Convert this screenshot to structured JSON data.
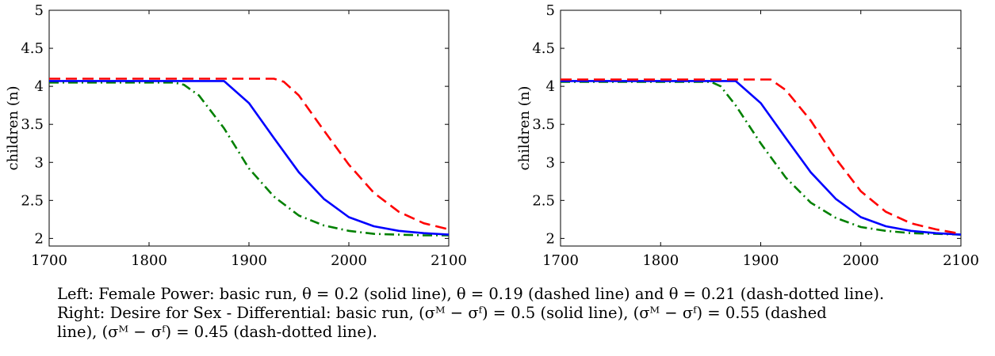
{
  "chart_data": [
    {
      "type": "line",
      "ylabel": "children (n)",
      "xlabel": "",
      "title": "",
      "xlim": [
        1700,
        2100
      ],
      "ylim": [
        1.9,
        5
      ],
      "xticks": [
        1700,
        1800,
        1900,
        2000,
        2100
      ],
      "yticks": [
        2,
        2.5,
        3,
        3.5,
        4,
        4.5,
        5
      ],
      "ytick_labels": [
        "2",
        "2.5",
        "3",
        "3.5",
        "4",
        "4.5",
        "5"
      ],
      "grid": false,
      "series": [
        {
          "style": "dash-dotted",
          "color": "#008000",
          "x": [
            1700,
            1825,
            1835,
            1850,
            1875,
            1900,
            1925,
            1950,
            1975,
            2000,
            2025,
            2050,
            2075,
            2100
          ],
          "values": [
            4.05,
            4.05,
            4.02,
            3.88,
            3.45,
            2.92,
            2.55,
            2.3,
            2.17,
            2.1,
            2.06,
            2.05,
            2.04,
            2.04
          ]
        },
        {
          "style": "solid",
          "color": "#0000ff",
          "x": [
            1700,
            1875,
            1900,
            1925,
            1950,
            1975,
            2000,
            2025,
            2050,
            2075,
            2100
          ],
          "values": [
            4.07,
            4.07,
            3.78,
            3.32,
            2.87,
            2.52,
            2.28,
            2.16,
            2.1,
            2.07,
            2.05
          ]
        },
        {
          "style": "dashed",
          "color": "#ff0000",
          "x": [
            1700,
            1925,
            1935,
            1950,
            1975,
            2000,
            2025,
            2050,
            2075,
            2100
          ],
          "values": [
            4.1,
            4.1,
            4.06,
            3.88,
            3.42,
            2.97,
            2.6,
            2.35,
            2.2,
            2.12
          ]
        }
      ]
    },
    {
      "type": "line",
      "ylabel": "children (n)",
      "xlabel": "",
      "title": "",
      "xlim": [
        1700,
        2100
      ],
      "ylim": [
        1.9,
        5
      ],
      "xticks": [
        1700,
        1800,
        1900,
        2000,
        2100
      ],
      "yticks": [
        2,
        2.5,
        3,
        3.5,
        4,
        4.5,
        5
      ],
      "ytick_labels": [
        "2",
        "2.5",
        "3",
        "3.5",
        "4",
        "4.5",
        "5"
      ],
      "grid": false,
      "series": [
        {
          "style": "dash-dotted",
          "color": "#008000",
          "x": [
            1700,
            1850,
            1860,
            1875,
            1900,
            1925,
            1950,
            1975,
            2000,
            2025,
            2050,
            2075,
            2100
          ],
          "values": [
            4.06,
            4.06,
            4.0,
            3.75,
            3.25,
            2.8,
            2.47,
            2.27,
            2.15,
            2.1,
            2.07,
            2.06,
            2.05
          ]
        },
        {
          "style": "solid",
          "color": "#0000ff",
          "x": [
            1700,
            1875,
            1900,
            1925,
            1950,
            1975,
            2000,
            2025,
            2050,
            2075,
            2100
          ],
          "values": [
            4.07,
            4.07,
            3.78,
            3.32,
            2.87,
            2.52,
            2.28,
            2.16,
            2.1,
            2.07,
            2.05
          ]
        },
        {
          "style": "dashed",
          "color": "#ff0000",
          "x": [
            1700,
            1910,
            1925,
            1950,
            1975,
            2000,
            2025,
            2050,
            2075,
            2100
          ],
          "values": [
            4.09,
            4.09,
            3.95,
            3.55,
            3.05,
            2.62,
            2.35,
            2.2,
            2.12,
            2.06
          ]
        }
      ]
    }
  ],
  "caption": {
    "line1": "Left: Female Power: basic run, θ = 0.2 (solid line), θ = 0.19 (dashed line) and θ = 0.21 (dash-dotted line).",
    "line2": "Right: Desire for Sex - Differential: basic run, (σᴹ − σᶠ) = 0.5 (solid line), (σᴹ − σᶠ) = 0.55 (dashed",
    "line3": "line), (σᴹ − σᶠ) = 0.45 (dash-dotted line)."
  }
}
